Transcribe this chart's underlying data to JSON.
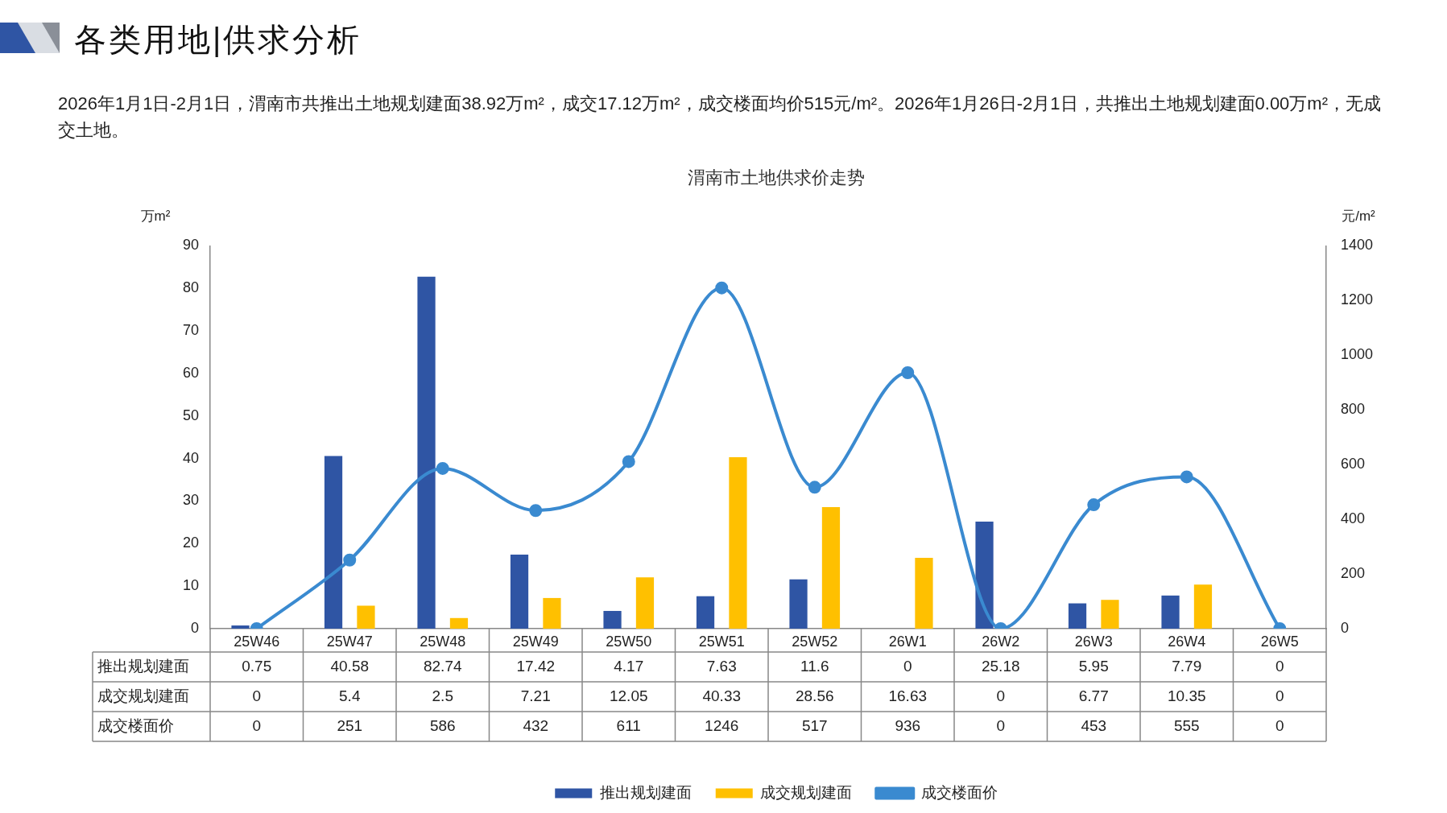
{
  "chart_data": {
    "type": "bar",
    "title": "渭南市土地供求价走势",
    "annotations": [
      "各类用地|供求分析",
      "2026年1月1日-2月1日，渭南市共推出土地规划建面38.92万m²，成交17.12万m²，成交楼面均价515元/m²。2026年1月26日-2月1日，共推出土地规划建面0.00万m²，无成交土地。"
    ],
    "ylabel": "万m²",
    "y2label": "元/m²",
    "categories": [
      "25W46",
      "25W47",
      "25W48",
      "25W49",
      "25W50",
      "25W51",
      "25W52",
      "26W1",
      "26W2",
      "26W3",
      "26W4",
      "26W5"
    ],
    "series": [
      {
        "name": "推出规划建面",
        "color": "#2f55a4",
        "values": [
          0.75,
          40.58,
          82.74,
          17.42,
          4.17,
          7.63,
          11.6,
          0,
          25.18,
          5.95,
          7.79,
          0
        ]
      },
      {
        "name": "成交规划建面",
        "color": "#ffc000",
        "values": [
          0,
          5.4,
          2.5,
          7.21,
          12.05,
          40.33,
          28.56,
          16.63,
          0,
          6.77,
          10.35,
          0
        ]
      },
      {
        "name": "成交楼面价",
        "type": "line",
        "axis": "y2",
        "color": "#3a8ad0",
        "values": [
          0,
          251,
          586,
          432,
          611,
          1246,
          517,
          936,
          0,
          453,
          555,
          0
        ]
      }
    ],
    "ylim": [
      0,
      90
    ],
    "yticks": [
      0,
      10,
      20,
      30,
      40,
      50,
      60,
      70,
      80,
      90
    ],
    "y2lim": [
      0,
      1400
    ],
    "y2ticks": [
      0,
      200,
      400,
      600,
      800,
      1000,
      1200,
      1400
    ],
    "data_labels": true,
    "legend": "bottom",
    "grid": false,
    "marker": "circle",
    "line_style": "solid"
  }
}
